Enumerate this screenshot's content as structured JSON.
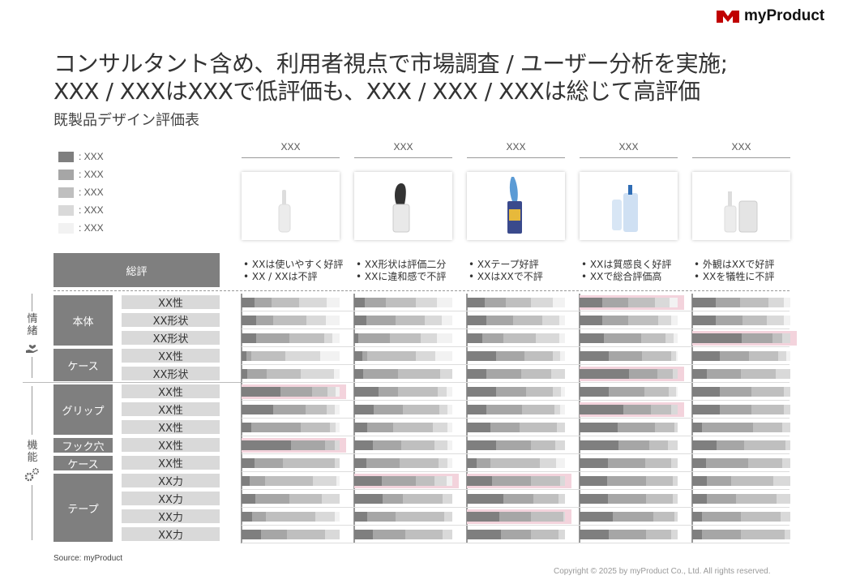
{
  "brand": {
    "name": "myProduct",
    "logo_color": "#c00000"
  },
  "title_line1": "コンサルタント含め、利用者視点で市場調査 / ユーザー分析を実施;",
  "title_line2": "XXX / XXXはXXXで低評価も、XXX / XXX / XXXは総じて高評価",
  "subtitle": "既製品デザイン評価表",
  "legend": [
    {
      "label": ": XXX",
      "color": "#7f7f7f"
    },
    {
      "label": ": XXX",
      "color": "#a6a6a6"
    },
    {
      "label": ": XXX",
      "color": "#bfbfbf"
    },
    {
      "label": ": XXX",
      "color": "#d9d9d9"
    },
    {
      "label": ": XXX",
      "color": "#f2f2f2"
    }
  ],
  "products": [
    {
      "name": "XXX",
      "icon": "white-lint-roller-icon",
      "comments": [
        "• XXは使いやすく好評",
        "• XX / XXは不評"
      ]
    },
    {
      "name": "XXX",
      "icon": "black-handle-lint-roller-icon",
      "comments": [
        "• XX形状は評価二分",
        "• XXに違和感で不評"
      ]
    },
    {
      "name": "XXX",
      "icon": "blue-lint-roller-icon",
      "comments": [
        "• XXテープ好評",
        "• XXはXXで不評"
      ]
    },
    {
      "name": "XXX",
      "icon": "lint-roller-with-case-icon",
      "comments": [
        "• XXは質感良く好評",
        "• XXで総合評価高"
      ]
    },
    {
      "name": "XXX",
      "icon": "white-lint-roller-set-icon",
      "comments": [
        "• 外観はXXで好評",
        "• XXを犠牲に不評"
      ]
    }
  ],
  "summary_label": "総評",
  "side_labels": {
    "info": "情緒",
    "info_icon": "hand-heart-icon",
    "func": "機能",
    "func_icon": "gears-icon"
  },
  "groups": [
    {
      "label": "本体",
      "rows": 3
    },
    {
      "label": "ケース",
      "rows": 2
    },
    {
      "label": "グリップ",
      "rows": 3
    },
    {
      "label": "フック穴",
      "rows": 1
    },
    {
      "label": "ケース",
      "rows": 1
    },
    {
      "label": "テープ",
      "rows": 4
    }
  ],
  "criteria": [
    "XX性",
    "XX形状",
    "XX形状",
    "XX性",
    "XX形状",
    "XX性",
    "XX性",
    "XX性",
    "XX性",
    "XX性",
    "XX力",
    "XX力",
    "XX力",
    "XX力"
  ],
  "ratings": [
    [
      [
        0.13,
        0.18,
        0.28,
        0.28,
        0.13
      ],
      [
        0.11,
        0.21,
        0.31,
        0.21,
        0.16
      ],
      [
        0.18,
        0.22,
        0.25,
        0.23,
        0.12
      ],
      [
        0.23,
        0.27,
        0.27,
        0.15,
        0.08
      ],
      [
        0.24,
        0.25,
        0.29,
        0.15,
        0.07
      ]
    ],
    [
      [
        0.15,
        0.17,
        0.34,
        0.2,
        0.14
      ],
      [
        0.12,
        0.3,
        0.3,
        0.17,
        0.11
      ],
      [
        0.2,
        0.27,
        0.3,
        0.17,
        0.06
      ],
      [
        0.23,
        0.27,
        0.3,
        0.13,
        0.07
      ],
      [
        0.24,
        0.27,
        0.25,
        0.17,
        0.07
      ]
    ],
    [
      [
        0.15,
        0.34,
        0.35,
        0.09,
        0.07
      ],
      [
        0.04,
        0.32,
        0.32,
        0.16,
        0.16
      ],
      [
        0.16,
        0.21,
        0.33,
        0.24,
        0.06
      ],
      [
        0.25,
        0.38,
        0.25,
        0.08,
        0.04
      ],
      [
        0.5,
        0.32,
        0.1,
        0.08,
        0.0
      ]
    ],
    [
      [
        0.05,
        0.05,
        0.35,
        0.35,
        0.2
      ],
      [
        0.08,
        0.05,
        0.5,
        0.2,
        0.17
      ],
      [
        0.3,
        0.29,
        0.29,
        0.07,
        0.05
      ],
      [
        0.3,
        0.34,
        0.29,
        0.05,
        0.02
      ],
      [
        0.28,
        0.3,
        0.3,
        0.08,
        0.04
      ]
    ],
    [
      [
        0.06,
        0.2,
        0.34,
        0.34,
        0.06
      ],
      [
        0.09,
        0.36,
        0.43,
        0.12,
        0.0
      ],
      [
        0.2,
        0.35,
        0.31,
        0.14,
        0.0
      ],
      [
        0.5,
        0.29,
        0.16,
        0.05,
        0.0
      ],
      [
        0.15,
        0.35,
        0.35,
        0.15,
        0.0
      ]
    ],
    [
      [
        0.4,
        0.32,
        0.16,
        0.08,
        0.04
      ],
      [
        0.25,
        0.2,
        0.4,
        0.09,
        0.06
      ],
      [
        0.3,
        0.3,
        0.28,
        0.08,
        0.04
      ],
      [
        0.3,
        0.36,
        0.25,
        0.07,
        0.02
      ],
      [
        0.28,
        0.32,
        0.33,
        0.07,
        0.0
      ]
    ],
    [
      [
        0.32,
        0.33,
        0.22,
        0.08,
        0.05
      ],
      [
        0.2,
        0.3,
        0.37,
        0.08,
        0.05
      ],
      [
        0.2,
        0.36,
        0.33,
        0.06,
        0.05
      ],
      [
        0.45,
        0.28,
        0.2,
        0.07,
        0.0
      ],
      [
        0.28,
        0.32,
        0.33,
        0.07,
        0.0
      ]
    ],
    [
      [
        0.1,
        0.5,
        0.3,
        0.06,
        0.04
      ],
      [
        0.13,
        0.27,
        0.4,
        0.15,
        0.05
      ],
      [
        0.24,
        0.3,
        0.38,
        0.08,
        0.0
      ],
      [
        0.39,
        0.38,
        0.2,
        0.03,
        0.0
      ],
      [
        0.1,
        0.52,
        0.3,
        0.08,
        0.0
      ]
    ],
    [
      [
        0.5,
        0.35,
        0.1,
        0.05,
        0.0
      ],
      [
        0.19,
        0.29,
        0.34,
        0.13,
        0.05
      ],
      [
        0.3,
        0.35,
        0.25,
        0.1,
        0.0
      ],
      [
        0.4,
        0.31,
        0.19,
        0.1,
        0.0
      ],
      [
        0.25,
        0.28,
        0.42,
        0.05,
        0.0
      ]
    ],
    [
      [
        0.13,
        0.29,
        0.53,
        0.05,
        0.0
      ],
      [
        0.12,
        0.34,
        0.4,
        0.09,
        0.05
      ],
      [
        0.1,
        0.14,
        0.5,
        0.17,
        0.09
      ],
      [
        0.29,
        0.38,
        0.26,
        0.07,
        0.0
      ],
      [
        0.14,
        0.43,
        0.35,
        0.08,
        0.0
      ]
    ],
    [
      [
        0.08,
        0.16,
        0.49,
        0.24,
        0.03
      ],
      [
        0.28,
        0.35,
        0.19,
        0.12,
        0.06
      ],
      [
        0.26,
        0.39,
        0.3,
        0.05,
        0.0
      ],
      [
        0.28,
        0.4,
        0.27,
        0.05,
        0.0
      ],
      [
        0.15,
        0.25,
        0.43,
        0.17,
        0.0
      ]
    ],
    [
      [
        0.14,
        0.35,
        0.33,
        0.18,
        0.0
      ],
      [
        0.29,
        0.21,
        0.4,
        0.1,
        0.0
      ],
      [
        0.37,
        0.31,
        0.25,
        0.07,
        0.0
      ],
      [
        0.29,
        0.39,
        0.27,
        0.05,
        0.0
      ],
      [
        0.15,
        0.3,
        0.41,
        0.14,
        0.0
      ]
    ],
    [
      [
        0.11,
        0.14,
        0.5,
        0.2,
        0.05
      ],
      [
        0.13,
        0.29,
        0.5,
        0.08,
        0.0
      ],
      [
        0.33,
        0.32,
        0.33,
        0.02,
        0.0
      ],
      [
        0.34,
        0.41,
        0.22,
        0.03,
        0.0
      ],
      [
        0.1,
        0.4,
        0.4,
        0.1,
        0.0
      ]
    ],
    [
      [
        0.2,
        0.26,
        0.39,
        0.15,
        0.0
      ],
      [
        0.19,
        0.33,
        0.38,
        0.1,
        0.0
      ],
      [
        0.35,
        0.3,
        0.28,
        0.07,
        0.0
      ],
      [
        0.3,
        0.38,
        0.25,
        0.07,
        0.0
      ],
      [
        0.1,
        0.4,
        0.44,
        0.06,
        0.0
      ]
    ]
  ],
  "highlights": [
    [
      0,
      3
    ],
    [
      2,
      4
    ],
    [
      4,
      3
    ],
    [
      5,
      0
    ],
    [
      6,
      3
    ],
    [
      8,
      0
    ],
    [
      10,
      1
    ],
    [
      10,
      2
    ],
    [
      12,
      2
    ]
  ],
  "source": "Source: myProduct",
  "copyright": "Copyright © 2025 by myProduct Co., Ltd.  All rights reserved."
}
